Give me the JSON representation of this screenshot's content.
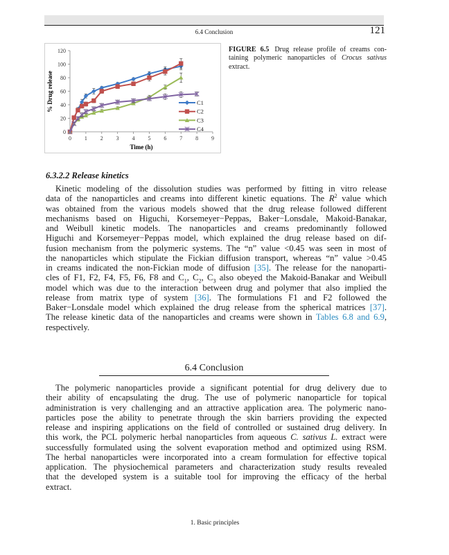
{
  "header": {
    "running_head": "6.4 Conclusion",
    "page_number": "121"
  },
  "figure": {
    "label": "FIGURE 6.5",
    "caption_lines": [
      [
        [
          "Drug release profile of creams con-",
          ""
        ]
      ],
      [
        [
          "taining polymeric nanoparticles of ",
          ""
        ],
        [
          "Crocus sativus",
          "i"
        ]
      ],
      [
        [
          "extract.",
          ""
        ]
      ]
    ]
  },
  "chart_data": {
    "type": "line",
    "title": "",
    "xlabel": "Time (h)",
    "ylabel": "% Drug release",
    "xlim": [
      0,
      9
    ],
    "ylim": [
      0,
      120
    ],
    "xticks": [
      "0",
      "1",
      "2",
      "3",
      "4",
      "5",
      "6",
      "7",
      "8",
      "9"
    ],
    "yticks": [
      "0",
      "20",
      "40",
      "60",
      "80",
      "100",
      "120"
    ],
    "legend_position": "right",
    "error_bars": true,
    "series": [
      {
        "name": "C1",
        "color": "#3f7bc8",
        "marker": "diamond",
        "x": [
          0,
          0.25,
          0.5,
          0.75,
          1,
          1.5,
          2,
          3,
          4,
          5,
          6,
          7
        ],
        "y": [
          0,
          20,
          33,
          44,
          53,
          60,
          65,
          71,
          78,
          86,
          92,
          97
        ],
        "err": [
          0,
          2,
          3,
          4,
          3,
          4,
          2,
          2,
          2,
          3,
          4,
          5
        ]
      },
      {
        "name": "C2",
        "color": "#c0504d",
        "marker": "square",
        "x": [
          0,
          0.25,
          0.5,
          0.75,
          1,
          1.5,
          2,
          3,
          4,
          5,
          6,
          7
        ],
        "y": [
          0,
          21,
          32,
          38,
          41,
          46,
          60,
          67,
          71,
          80,
          89,
          101
        ],
        "err": [
          0,
          2,
          2,
          3,
          3,
          3,
          3,
          3,
          3,
          5,
          5,
          7
        ]
      },
      {
        "name": "C3",
        "color": "#9bbb59",
        "marker": "triangle",
        "x": [
          0,
          0.25,
          0.5,
          0.75,
          1,
          1.5,
          2,
          3,
          4,
          5,
          6,
          7
        ],
        "y": [
          0,
          12,
          18,
          22,
          24,
          28,
          31,
          35,
          42,
          51,
          66,
          80
        ],
        "err": [
          0,
          2,
          2,
          2,
          2,
          2,
          2,
          2,
          2,
          3,
          3,
          7
        ]
      },
      {
        "name": "C4",
        "color": "#8064a2",
        "marker": "star",
        "x": [
          0,
          0.25,
          0.5,
          0.75,
          1,
          1.5,
          2,
          3,
          4,
          5,
          6,
          7,
          8
        ],
        "y": [
          0,
          12,
          20,
          25,
          30,
          34,
          39,
          44,
          46,
          49,
          52,
          55,
          56
        ],
        "err": [
          0,
          2,
          2,
          3,
          3,
          3,
          3,
          3,
          3,
          3,
          4,
          4,
          3
        ]
      }
    ]
  },
  "section": {
    "heading": "6.3.2.2 Release kinetics"
  },
  "para1": [
    [
      [
        "Kinetic modeling of the dissolution studies was performed by fitting in vitro release",
        ""
      ]
    ],
    [
      [
        "data of the nanoparticles and creams into different kinetic equations. The ",
        ""
      ],
      [
        "R",
        "i"
      ],
      [
        "2",
        "sup"
      ],
      [
        " value which",
        ""
      ]
    ],
    [
      [
        "was obtained from the various models showed that the drug release followed different",
        ""
      ]
    ],
    [
      [
        "mechanisms based on Higuchi, Korsemeyer−Peppas, Baker−Lonsdale, Makoid-Banakar,",
        ""
      ]
    ],
    [
      [
        "and Weibull kinetic models. The nanoparticles and creams predominantly followed",
        ""
      ]
    ],
    [
      [
        "Higuchi and Korsemeyer−Peppas model, which explained the drug release based on dif-",
        ""
      ]
    ],
    [
      [
        "fusion mechanism from the polymeric systems. The “n” value <0.45 was seen in most of",
        ""
      ]
    ],
    [
      [
        "the nanoparticles which stipulate the Fickian diffusion transport, whereas “n” value >0.45",
        ""
      ]
    ],
    [
      [
        "in creams indicated the non-Fickian mode of diffusion ",
        ""
      ],
      [
        "[35]",
        "link"
      ],
      [
        ". The release for the nanoparti-",
        ""
      ]
    ],
    [
      [
        "cles of F1, F2, F4, F5, F6, F8 and C",
        ""
      ],
      [
        "1",
        "sub"
      ],
      [
        ", C",
        ""
      ],
      [
        "2",
        "sub"
      ],
      [
        ", C",
        ""
      ],
      [
        "3",
        "sub"
      ],
      [
        " also obeyed the Makoid-Banakar and Weibull",
        ""
      ]
    ],
    [
      [
        "model which was due to the interaction between drug and polymer that also implied the",
        ""
      ]
    ],
    [
      [
        "release from matrix type of system ",
        ""
      ],
      [
        "[36]",
        "link"
      ],
      [
        ". The formulations F1 and F2 followed the",
        ""
      ]
    ],
    [
      [
        "Baker−Lonsdale model which explained the drug release from the spherical matrices ",
        ""
      ],
      [
        "[37]",
        "link"
      ],
      [
        ".",
        ""
      ]
    ],
    [
      [
        "The release kinetic data of the nanoparticles and creams were shown in ",
        ""
      ],
      [
        "Tables 6.8 and 6.9",
        "link"
      ],
      [
        ",",
        ""
      ]
    ],
    [
      [
        "respectively.",
        ""
      ]
    ]
  ],
  "conclusion": {
    "title": "6.4 Conclusion"
  },
  "para2": [
    [
      [
        "The polymeric nanoparticles provide a significant potential for drug delivery due to",
        ""
      ]
    ],
    [
      [
        "their ability of encapsulating the drug. The use of polymeric nanoparticle for topical",
        ""
      ]
    ],
    [
      [
        "administration is very challenging and an attractive application area. The polymeric nano-",
        ""
      ]
    ],
    [
      [
        "particles pose the ability to penetrate through the skin barriers providing the expected",
        ""
      ]
    ],
    [
      [
        "release and inspiring applications on the field of controlled or sustained drug delivery. In",
        ""
      ]
    ],
    [
      [
        "this work, the PCL polymeric herbal nanoparticles from aqueous ",
        ""
      ],
      [
        "C. sativus L.",
        "i"
      ],
      [
        " extract were",
        ""
      ]
    ],
    [
      [
        "successfully formulated using the solvent evaporation method and optimized using RSM.",
        ""
      ]
    ],
    [
      [
        "The herbal nanoparticles were incorporated into a cream formulation for effective topical",
        ""
      ]
    ],
    [
      [
        "application. The physiochemical parameters and characterization study results revealed",
        ""
      ]
    ],
    [
      [
        "that the developed system is a suitable tool for improving the efficacy of the herbal",
        ""
      ]
    ],
    [
      [
        "extract.",
        ""
      ]
    ]
  ],
  "footer": {
    "text": "1. Basic principles"
  }
}
